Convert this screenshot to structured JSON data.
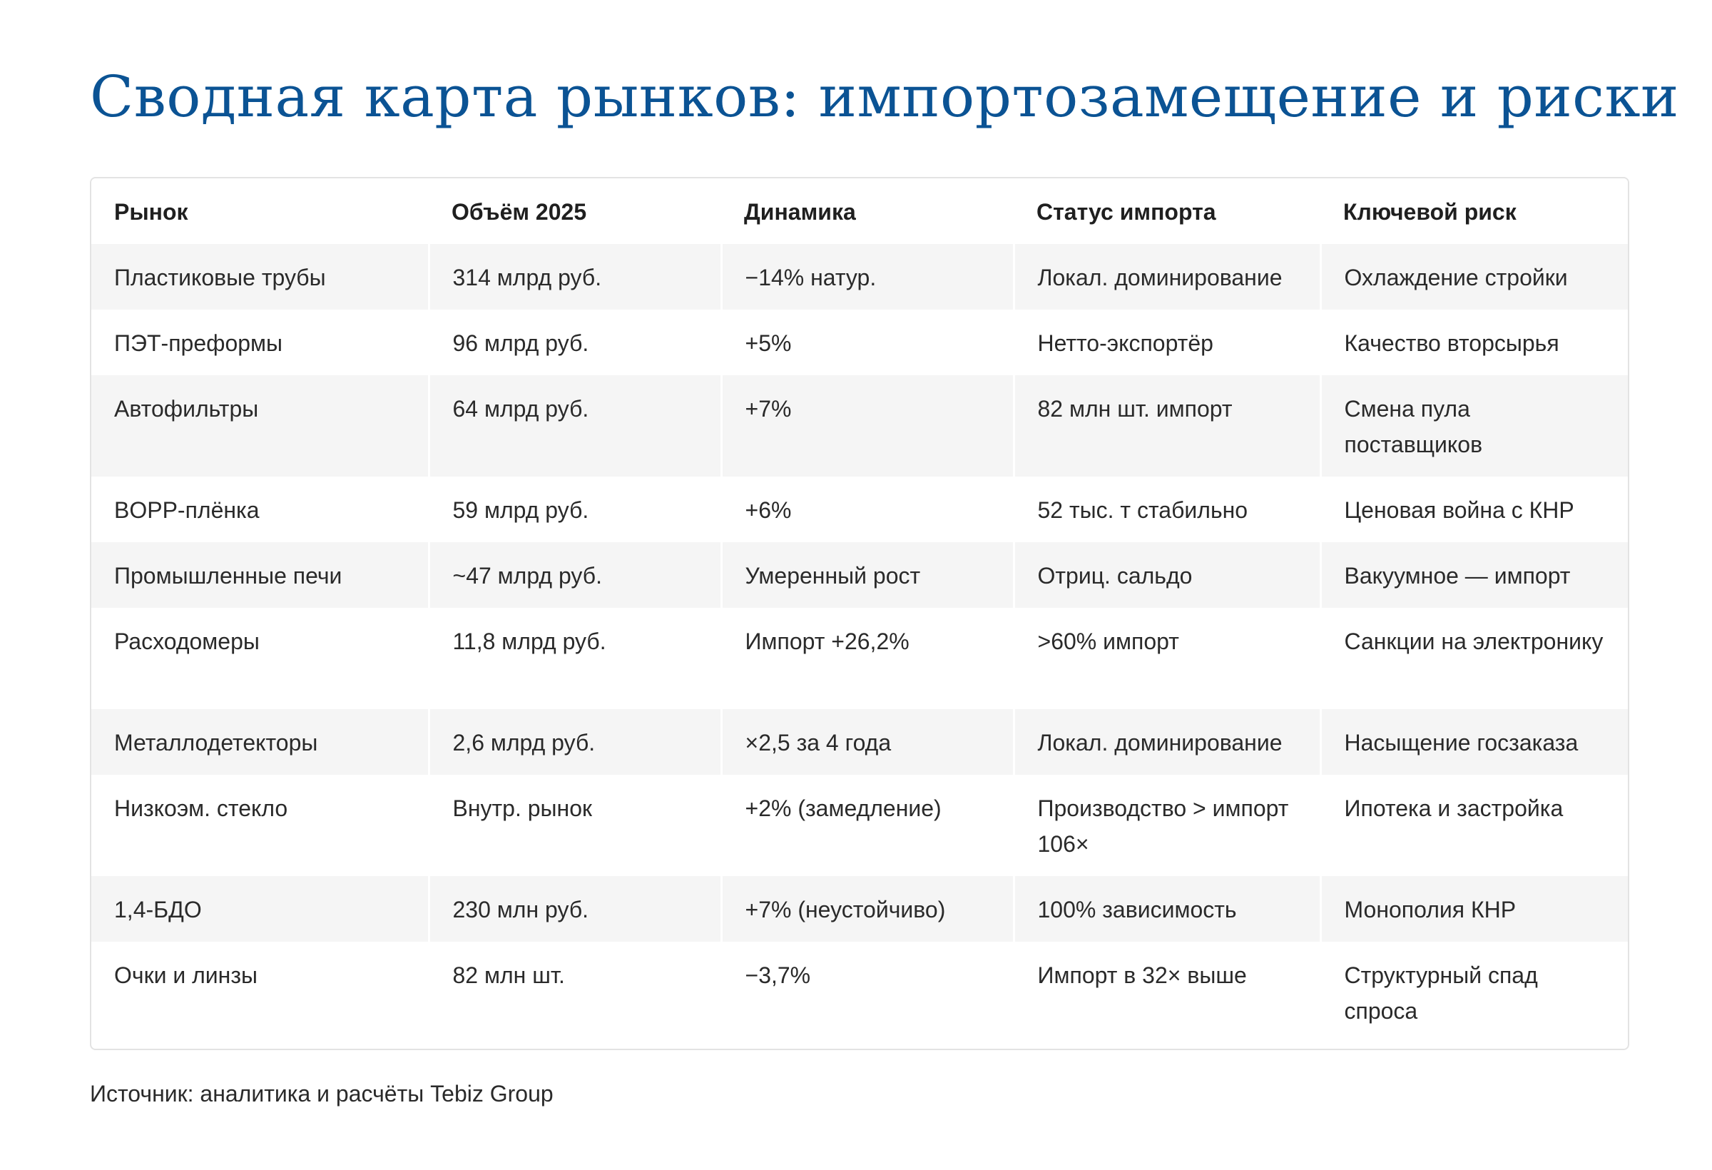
{
  "title": "Сводная карта рынков: импортозамещение и риски",
  "table": {
    "headers": [
      "Рынок",
      "Объём 2025",
      "Динамика",
      "Статус импорта",
      "Ключевой риск"
    ],
    "rows": [
      [
        "Пластиковые трубы",
        "314 млрд руб.",
        "−14% натур.",
        "Локал. доминирование",
        "Охлаждение стройки"
      ],
      [
        "ПЭТ-преформы",
        "96 млрд руб.",
        "+5%",
        "Нетто-экспортёр",
        "Качество вторсырья"
      ],
      [
        "Автофильтры",
        "64 млрд руб.",
        "+7%",
        "82 млн шт. импорт",
        "Смена пула поставщиков"
      ],
      [
        "BOPP-плёнка",
        "59 млрд руб.",
        "+6%",
        "52 тыс. т стабильно",
        "Ценовая война с КНР"
      ],
      [
        "Промышленные печи",
        "~47 млрд руб.",
        "Умеренный рост",
        "Отриц. сальдо",
        "Вакуумное — импорт"
      ],
      [
        "Расходомеры",
        "11,8 млрд руб.",
        "Импорт +26,2%",
        ">60% импорт",
        "Санкции на электронику"
      ],
      [
        "Металлодетекторы",
        "2,6 млрд руб.",
        "×2,5 за 4 года",
        "Локал. доминирование",
        "Насыщение госзаказа"
      ],
      [
        "Низкоэм. стекло",
        "Внутр. рынок",
        "+2% (замедление)",
        "Производство > импорт 106×",
        "Ипотека и застройка"
      ],
      [
        "1,4-БДО",
        "230 млн руб.",
        "+7% (неустойчиво)",
        "100% зависимость",
        "Монополия КНР"
      ],
      [
        "Очки и линзы",
        "82 млн шт.",
        "−3,7%",
        "Импорт в 32× выше",
        "Структурный спад спроса"
      ]
    ]
  },
  "source": "Источник: аналитика и расчёты Tebiz Group",
  "colors": {
    "title": "#0b5394",
    "stripe": "#f5f5f5",
    "border": "#e3e3e3"
  }
}
